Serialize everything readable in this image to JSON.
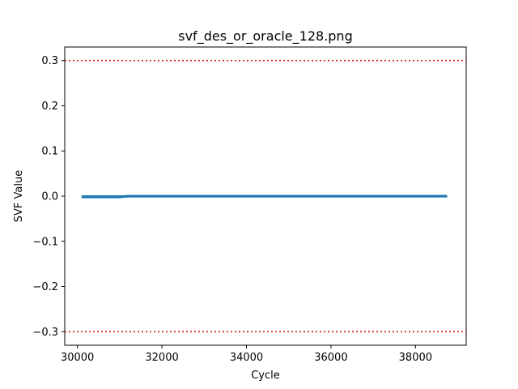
{
  "chart_data": {
    "type": "line",
    "title": "svf_des_or_oracle_128.png",
    "xlabel": "Cycle",
    "ylabel": "SVF Value",
    "xlim": [
      29700,
      39200
    ],
    "ylim": [
      -0.33,
      0.33
    ],
    "xticks": [
      30000,
      32000,
      34000,
      36000,
      38000
    ],
    "yticks": [
      -0.3,
      -0.2,
      -0.1,
      0.0,
      0.1,
      0.2,
      0.3
    ],
    "ytick_labels": [
      "−0.3",
      "−0.2",
      "−0.1",
      "0.0",
      "0.1",
      "0.2",
      "0.3"
    ],
    "grid": false,
    "series": [
      {
        "color": "#1f77b4",
        "x_start": 30100,
        "x_end": 38750,
        "y_min": -0.003,
        "y_max": 0.002,
        "x": [
          30100,
          30400,
          31000,
          31200,
          32000,
          34000,
          36000,
          38000,
          38750
        ],
        "y": [
          -0.002,
          -0.002,
          -0.002,
          0.0,
          0.0,
          0.0,
          0.0,
          0.0,
          0.0
        ]
      }
    ],
    "threshold_lines": [
      {
        "y": 0.3,
        "color": "#d62728",
        "style": "dotted"
      },
      {
        "y": -0.3,
        "color": "#d62728",
        "style": "dotted"
      }
    ]
  }
}
